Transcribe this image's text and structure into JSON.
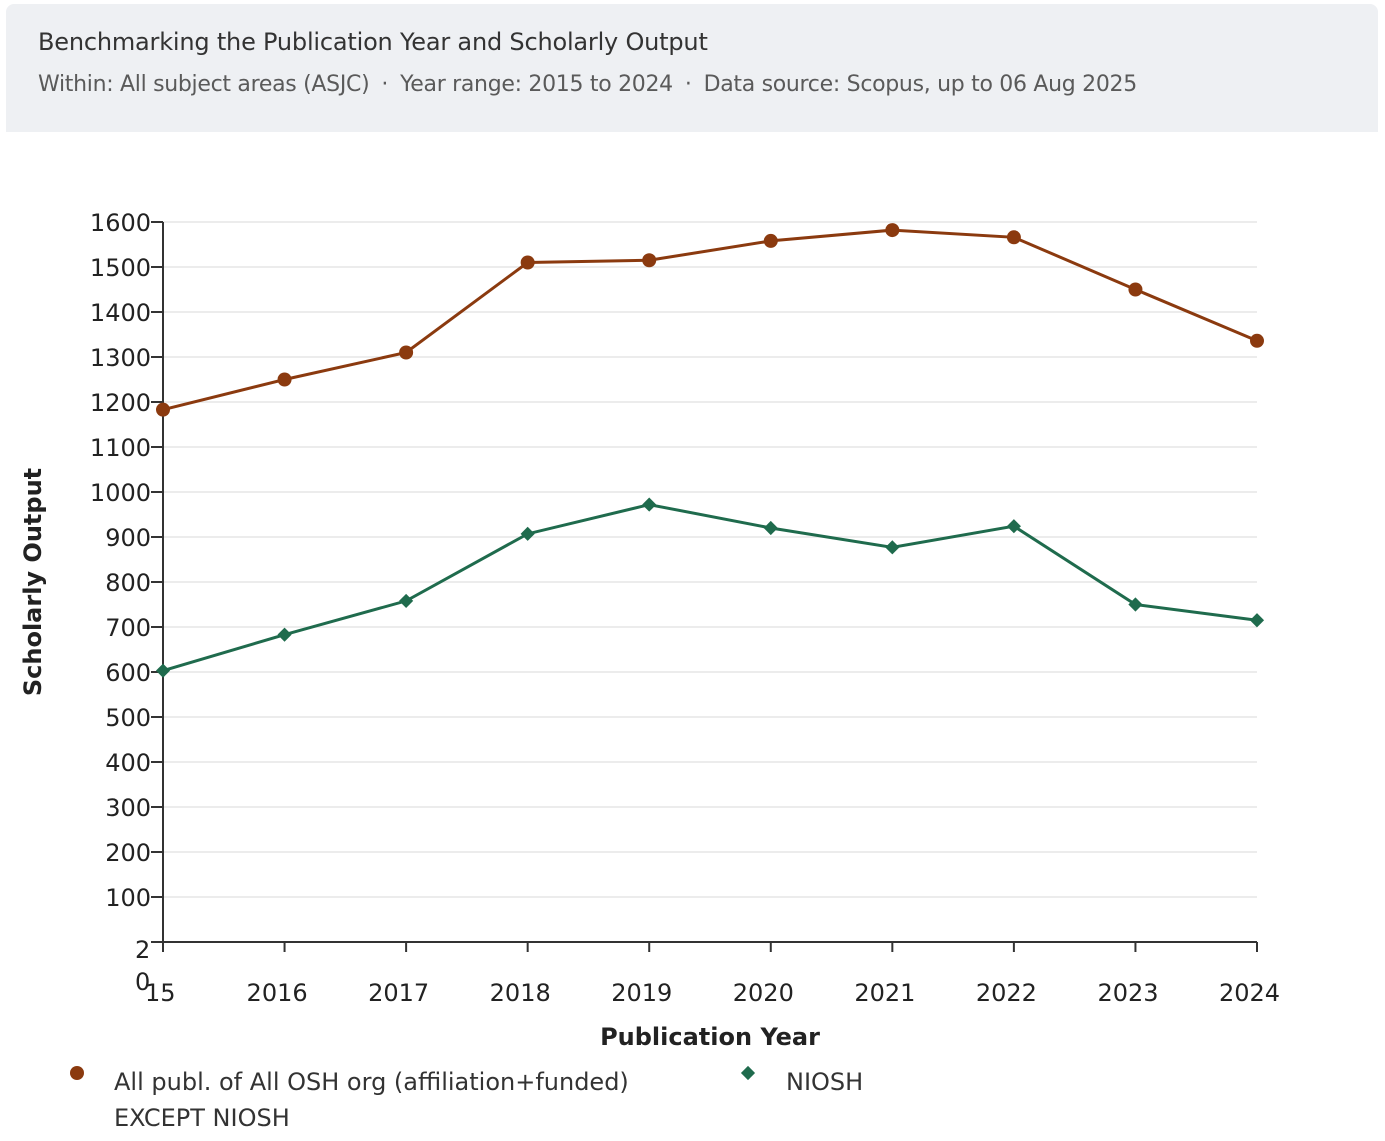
{
  "header": {
    "title": "Benchmarking the Publication Year and Scholarly Output",
    "within": "Within: All subject areas (ASJC)",
    "year_range": "Year range: 2015 to 2024",
    "data_source": "Data source: Scopus, up to 06 Aug 2025",
    "separator": "·"
  },
  "legend": {
    "series1_line1": "All publ. of All OSH org (affiliation+funded)",
    "series1_line2": "EXCEPT NIOSH",
    "series2": "NIOSH"
  },
  "colors": {
    "series1": "#8b3a0f",
    "series2": "#1f6b4d",
    "grid": "#e6e6e6",
    "axis": "#333333"
  },
  "chart_data": {
    "type": "line",
    "xlabel": "Publication Year",
    "ylabel": "Scholarly Output",
    "x": [
      "2015",
      "2016",
      "2017",
      "2018",
      "2019",
      "2020",
      "2021",
      "2022",
      "2023",
      "2024"
    ],
    "x_tick_labels": [
      "2\n0\n15",
      "2016",
      "2017",
      "2018",
      "2019",
      "2020",
      "2021",
      "2022",
      "2023",
      "2024"
    ],
    "ylim": [
      0,
      1600
    ],
    "yticks": [
      100,
      200,
      300,
      400,
      500,
      600,
      700,
      800,
      900,
      1000,
      1100,
      1200,
      1300,
      1400,
      1500,
      1600
    ],
    "grid": true,
    "legend_position": "bottom",
    "series": [
      {
        "name": "All publ. of All OSH org (affiliation+funded) EXCEPT NIOSH",
        "marker": "circle",
        "values": [
          1183,
          1250,
          1310,
          1510,
          1515,
          1558,
          1582,
          1566,
          1450,
          1336
        ]
      },
      {
        "name": "NIOSH",
        "marker": "diamond",
        "values": [
          603,
          683,
          758,
          907,
          972,
          920,
          877,
          924,
          750,
          715
        ]
      }
    ]
  }
}
